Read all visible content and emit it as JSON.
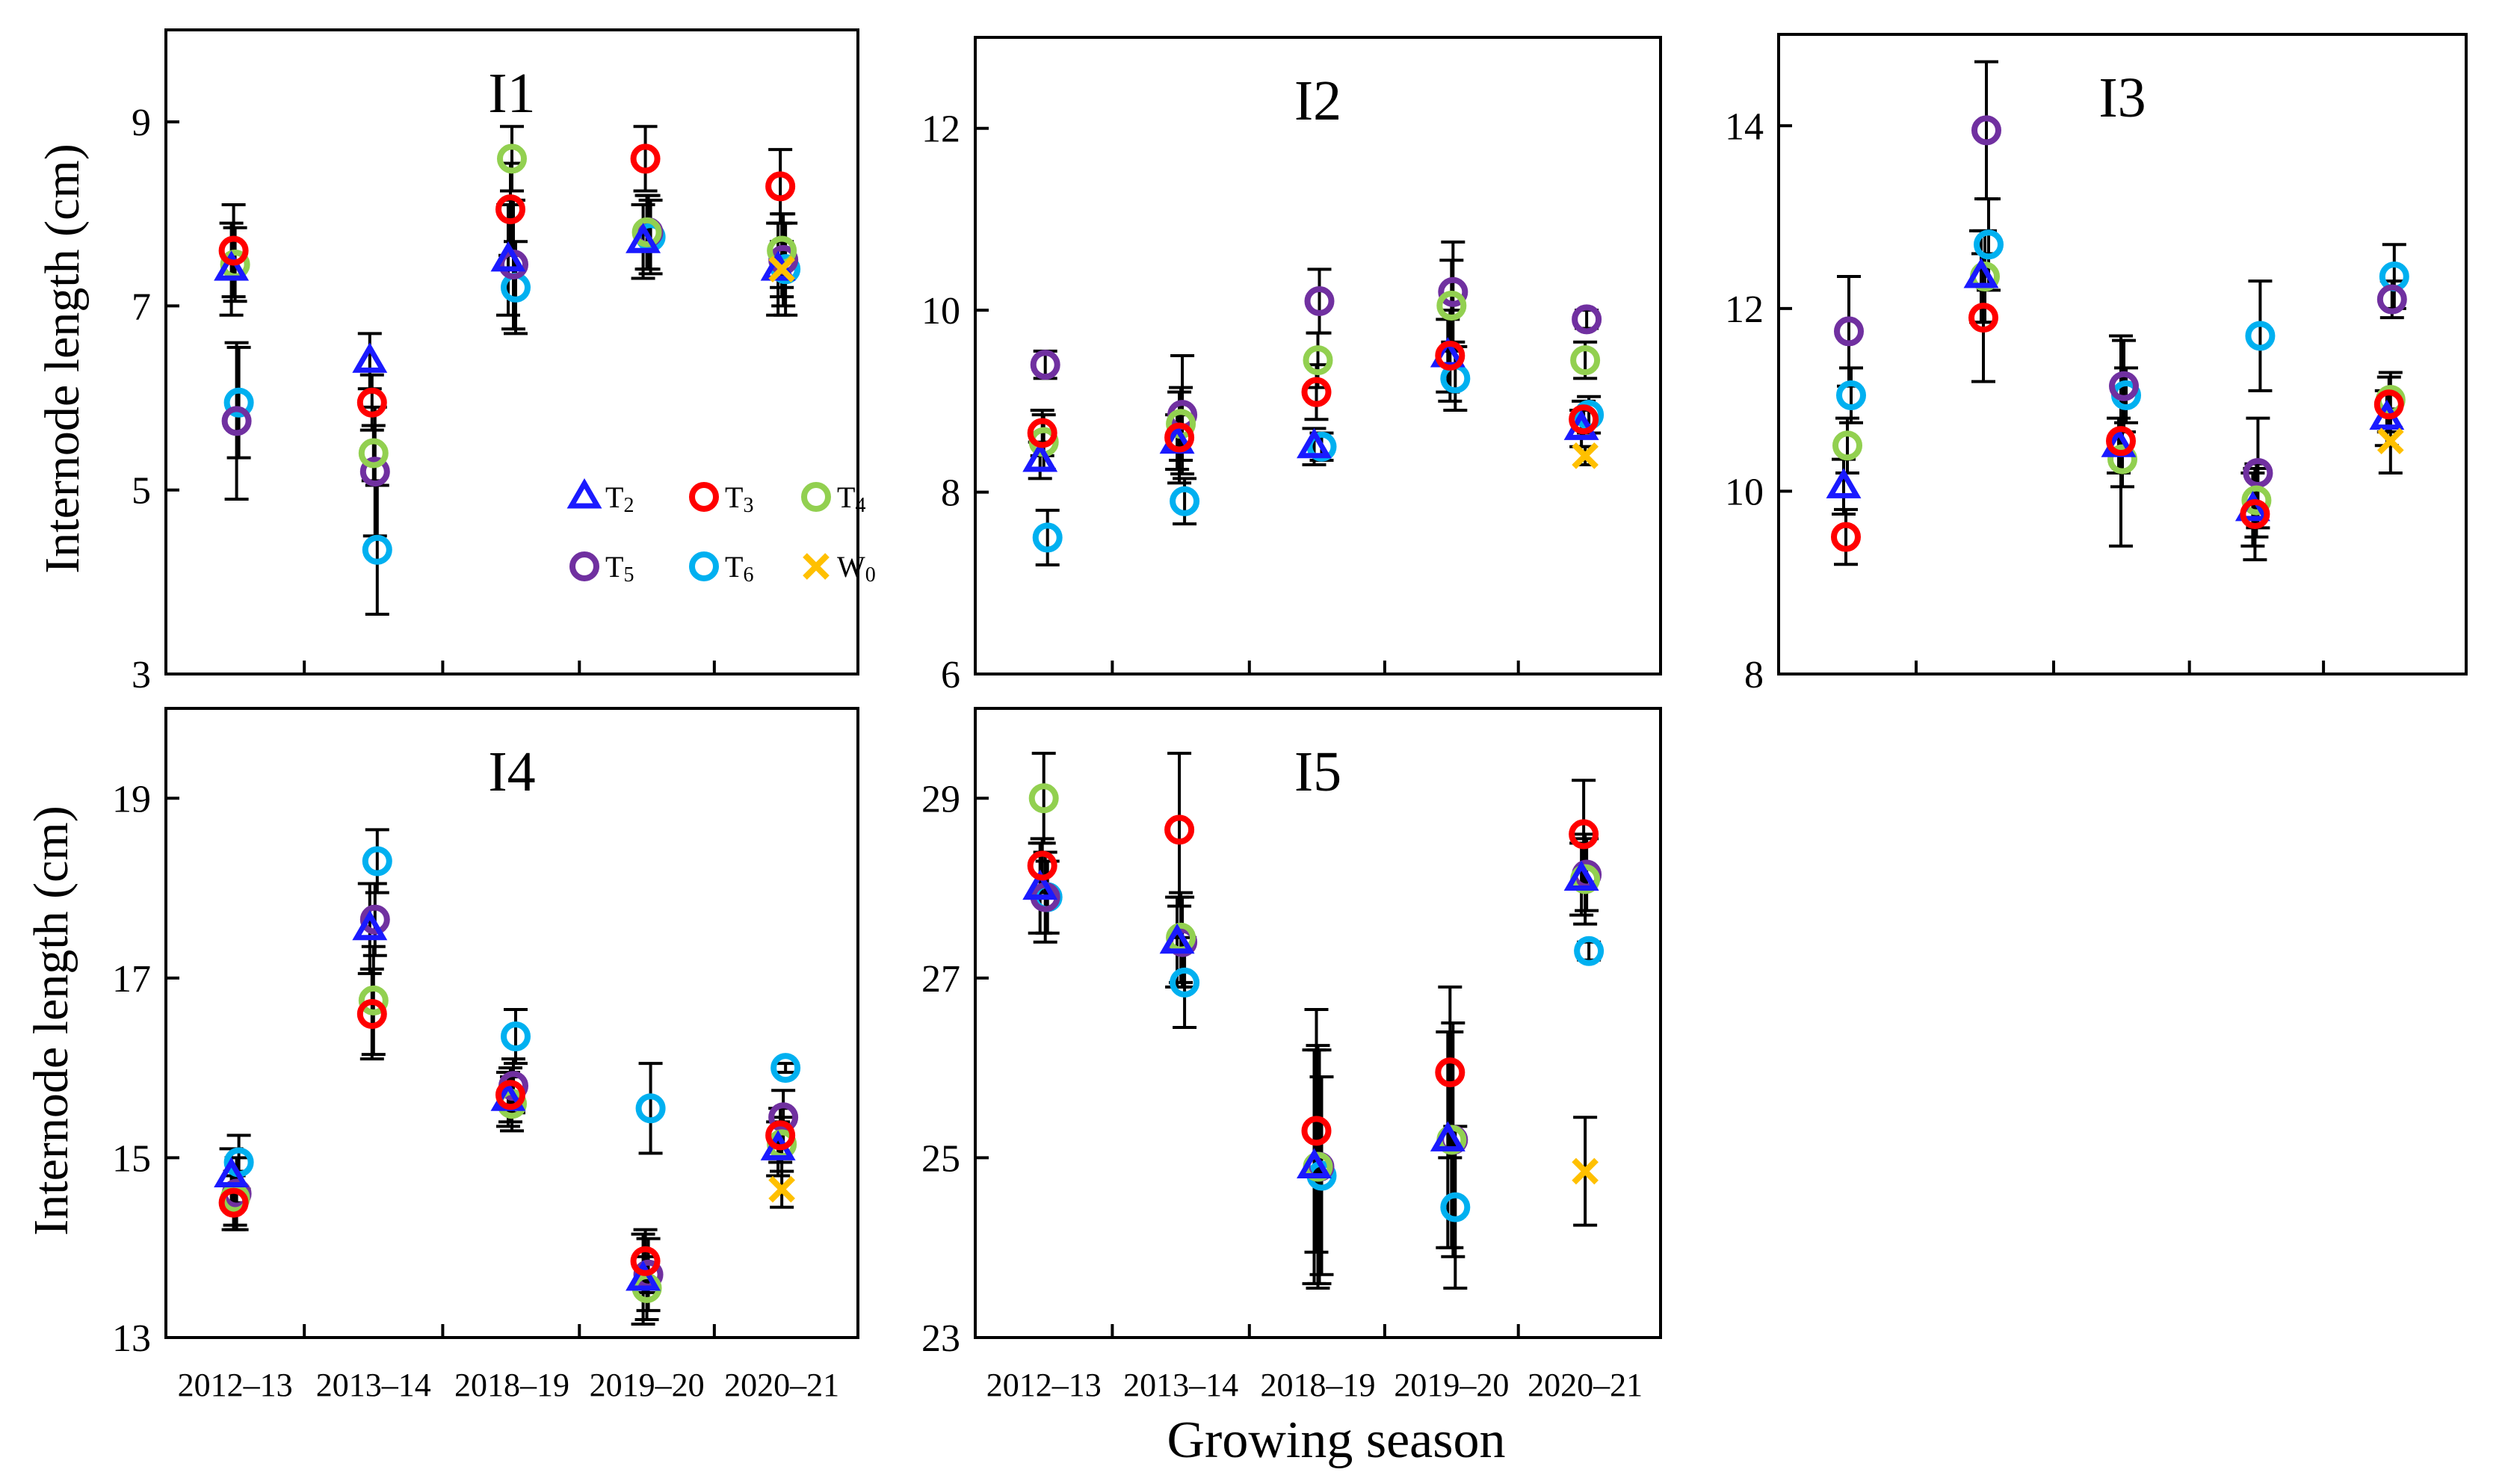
{
  "figure": {
    "ylabel": "Internode length (cm)",
    "xlabel": "Growing season",
    "legend": {
      "placement": "inside-lower-right of I1",
      "entries": [
        {
          "key": "T2",
          "base": "T",
          "sub": "2",
          "marker": "triangle",
          "color": "#1a1aff"
        },
        {
          "key": "T3",
          "base": "T",
          "sub": "3",
          "marker": "circle",
          "color": "#ff0000"
        },
        {
          "key": "T4",
          "base": "T",
          "sub": "4",
          "marker": "circle",
          "color": "#92d050"
        },
        {
          "key": "T5",
          "base": "T",
          "sub": "5",
          "marker": "circle",
          "color": "#7030a0"
        },
        {
          "key": "T6",
          "base": "T",
          "sub": "6",
          "marker": "circle",
          "color": "#00b0f0"
        },
        {
          "key": "W0",
          "base": "W",
          "sub": "0",
          "marker": "x",
          "color": "#ffc000"
        }
      ]
    }
  },
  "chart_data": [
    {
      "type": "scatter",
      "title": "I1",
      "categories": [
        "2012–13",
        "2013–14",
        "2018–19",
        "2019–20",
        "2020–21"
      ],
      "ylim": [
        3,
        10
      ],
      "yticks": [
        3,
        5,
        7,
        9
      ],
      "ylabel": "Internode length (cm)",
      "series": [
        {
          "name": "T2",
          "values": [
            7.4,
            6.4,
            7.5,
            7.7,
            7.4
          ],
          "err": [
            0.5,
            0.3,
            0.6,
            0.4,
            0.5
          ]
        },
        {
          "name": "T3",
          "values": [
            7.6,
            5.95,
            8.05,
            8.6,
            8.3
          ],
          "err": [
            0.5,
            0.3,
            0.5,
            0.35,
            0.4
          ]
        },
        {
          "name": "T4",
          "values": [
            7.45,
            5.4,
            8.6,
            7.8,
            7.6
          ],
          "err": [
            0.4,
            0.3,
            0.35,
            0.4,
            0.4
          ]
        },
        {
          "name": "T5",
          "values": [
            5.75,
            5.2,
            7.45,
            7.8,
            7.5
          ],
          "err": [
            0.85,
            0.7,
            0.7,
            0.4,
            0.5
          ]
        },
        {
          "name": "T6",
          "values": [
            5.95,
            4.35,
            7.2,
            7.75,
            7.4
          ],
          "err": [
            0.6,
            0.7,
            0.5,
            0.4,
            0.5
          ]
        },
        {
          "name": "W0",
          "values": [
            null,
            null,
            null,
            null,
            7.4
          ],
          "err": [
            null,
            null,
            null,
            null,
            0.3
          ]
        }
      ]
    },
    {
      "type": "scatter",
      "title": "I2",
      "categories": [
        "2012–13",
        "2013–14",
        "2018–19",
        "2019–20",
        "2020–21"
      ],
      "ylim": [
        6,
        13
      ],
      "yticks": [
        6,
        8,
        10,
        12
      ],
      "ylabel": "",
      "series": [
        {
          "name": "T2",
          "values": [
            8.35,
            8.55,
            8.5,
            9.5,
            8.7
          ],
          "err": [
            0.2,
            0.3,
            0.2,
            0.4,
            0.2
          ]
        },
        {
          "name": "T3",
          "values": [
            8.65,
            8.6,
            9.1,
            9.5,
            8.8
          ],
          "err": [
            0.25,
            0.5,
            0.3,
            0.5,
            0.2
          ]
        },
        {
          "name": "T4",
          "values": [
            8.55,
            8.75,
            9.45,
            10.05,
            9.45
          ],
          "err": [
            0.3,
            0.4,
            0.3,
            0.5,
            0.2
          ]
        },
        {
          "name": "T5",
          "values": [
            9.4,
            8.85,
            10.1,
            10.2,
            9.9
          ],
          "err": [
            0.15,
            0.65,
            0.35,
            0.55,
            0.1
          ]
        },
        {
          "name": "T6",
          "values": [
            7.5,
            7.9,
            8.5,
            9.25,
            8.85
          ],
          "err": [
            0.3,
            0.25,
            0.15,
            0.35,
            0.2
          ]
        },
        {
          "name": "W0",
          "values": [
            null,
            null,
            null,
            null,
            8.4
          ],
          "err": [
            null,
            null,
            null,
            null,
            0.1
          ]
        }
      ]
    },
    {
      "type": "scatter",
      "title": "I3",
      "categories": [
        "2012–13",
        "2013–14",
        "2018–19",
        "2019–20",
        "2020–21"
      ],
      "ylim": [
        8,
        15
      ],
      "yticks": [
        8,
        10,
        12,
        14
      ],
      "ylabel": "",
      "series": [
        {
          "name": "T2",
          "values": [
            10.05,
            12.35,
            10.5,
            9.8,
            10.8
          ],
          "err": [
            0.3,
            0.5,
            0.3,
            0.4,
            0.3
          ]
        },
        {
          "name": "T3",
          "values": [
            9.5,
            11.9,
            10.55,
            9.75,
            10.95
          ],
          "err": [
            0.3,
            0.7,
            1.15,
            0.5,
            0.3
          ]
        },
        {
          "name": "T4",
          "values": [
            10.5,
            12.35,
            10.35,
            9.9,
            11.0
          ],
          "err": [
            0.3,
            0.5,
            0.3,
            0.4,
            0.3
          ]
        },
        {
          "name": "T5",
          "values": [
            11.75,
            13.95,
            11.15,
            10.2,
            12.1
          ],
          "err": [
            0.6,
            0.75,
            0.5,
            0.6,
            0.2
          ]
        },
        {
          "name": "T6",
          "values": [
            11.05,
            12.7,
            11.05,
            11.7,
            12.35
          ],
          "err": [
            0.3,
            0.5,
            0.3,
            0.6,
            0.35
          ]
        },
        {
          "name": "W0",
          "values": [
            null,
            null,
            null,
            null,
            10.55
          ],
          "err": [
            null,
            null,
            null,
            null,
            0.35
          ]
        }
      ]
    },
    {
      "type": "scatter",
      "title": "I4",
      "categories": [
        "2012–13",
        "2013–14",
        "2018–19",
        "2019–20",
        "2020–21"
      ],
      "ylim": [
        13,
        20
      ],
      "yticks": [
        13,
        15,
        17,
        19
      ],
      "ylabel": "Internode length (cm)",
      "series": [
        {
          "name": "T2",
          "values": [
            14.8,
            17.55,
            15.65,
            13.65,
            15.1
          ],
          "err": [
            0.3,
            0.5,
            0.3,
            0.5,
            0.3
          ]
        },
        {
          "name": "T3",
          "values": [
            14.5,
            16.6,
            15.7,
            13.85,
            15.25
          ],
          "err": [
            0.3,
            0.5,
            0.3,
            0.35,
            0.3
          ]
        },
        {
          "name": "T4",
          "values": [
            14.55,
            16.75,
            15.6,
            13.55,
            15.15
          ],
          "err": [
            0.3,
            0.6,
            0.3,
            0.35,
            0.3
          ]
        },
        {
          "name": "T5",
          "values": [
            14.6,
            17.65,
            15.8,
            13.7,
            15.45
          ],
          "err": [
            0.4,
            0.4,
            0.3,
            0.4,
            0.3
          ]
        },
        {
          "name": "T6",
          "values": [
            14.95,
            18.3,
            16.35,
            15.55,
            16.0
          ],
          "err": [
            0.3,
            0.35,
            0.3,
            0.5,
            0.05
          ]
        },
        {
          "name": "W0",
          "values": [
            null,
            null,
            null,
            null,
            14.65
          ],
          "err": [
            null,
            null,
            null,
            null,
            0.2
          ]
        }
      ]
    },
    {
      "type": "scatter",
      "title": "I5",
      "categories": [
        "2012–13",
        "2013–14",
        "2018–19",
        "2019–20",
        "2020–21"
      ],
      "ylim": [
        23,
        30
      ],
      "yticks": [
        23,
        25,
        27,
        29
      ],
      "ylabel": "",
      "series": [
        {
          "name": "T2",
          "values": [
            28.0,
            27.4,
            24.9,
            25.2,
            28.1
          ],
          "err": [
            0.5,
            0.5,
            1.3,
            1.2,
            0.4
          ]
        },
        {
          "name": "T3",
          "values": [
            28.25,
            28.65,
            25.3,
            25.95,
            28.6
          ],
          "err": [
            0.3,
            0.85,
            1.35,
            0.95,
            0.6
          ]
        },
        {
          "name": "T4",
          "values": [
            29.0,
            27.45,
            24.9,
            25.2,
            28.1
          ],
          "err": [
            0.5,
            0.5,
            1.35,
            1.2,
            0.5
          ]
        },
        {
          "name": "T5",
          "values": [
            27.9,
            27.4,
            24.9,
            25.2,
            28.15
          ],
          "err": [
            0.5,
            0.5,
            1.3,
            1.3,
            0.4
          ]
        },
        {
          "name": "T6",
          "values": [
            27.9,
            26.95,
            24.8,
            24.45,
            27.3
          ],
          "err": [
            0.4,
            0.5,
            1.1,
            0.9,
            0.1
          ]
        },
        {
          "name": "W0",
          "values": [
            null,
            null,
            null,
            null,
            24.85
          ],
          "err": [
            null,
            null,
            null,
            null,
            0.6
          ]
        }
      ]
    }
  ]
}
